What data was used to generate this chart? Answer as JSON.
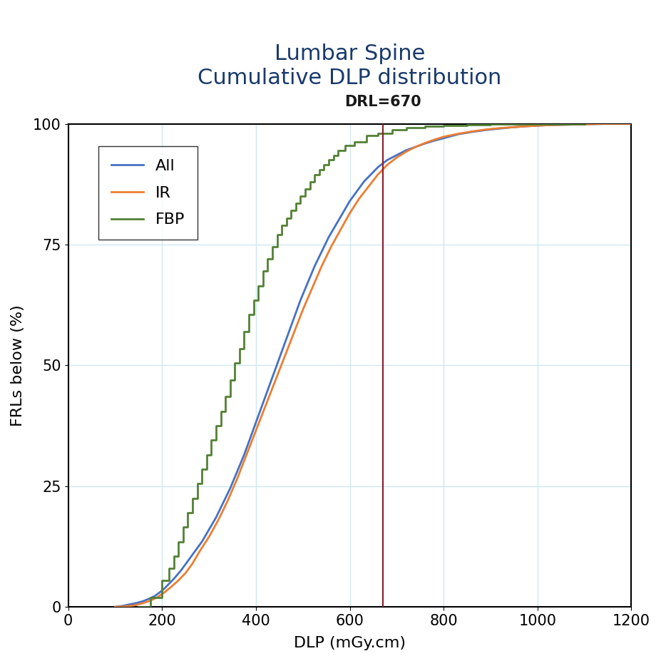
{
  "title_line1": "Lumbar Spine",
  "title_line2": "Cumulative DLP distribution",
  "title_color": "#1a3a6b",
  "xlabel": "DLP (mGy.cm)",
  "ylabel": "FRLs below (%)",
  "xlim": [
    0,
    1200
  ],
  "ylim": [
    0,
    100
  ],
  "xticks": [
    0,
    200,
    400,
    600,
    800,
    1000,
    1200
  ],
  "yticks": [
    0,
    25,
    50,
    75,
    100
  ],
  "drl_value": 670,
  "drl_color": "#8b1a2a",
  "drl_label": "DRL=670",
  "grid_color": "#d0e8f0",
  "background_color": "#ffffff",
  "axis_label_fontsize": 16,
  "tick_fontsize": 15,
  "title_fontsize": 22,
  "drl_fontsize": 15,
  "legend_fontsize": 16,
  "line_width": 2.0,
  "all_color": "#4472c4",
  "ir_color": "#ed7d31",
  "fbp_color": "#538135",
  "all_label": "All",
  "ir_label": "IR",
  "fbp_label": "FBP",
  "all_x": [
    100,
    115,
    130,
    145,
    160,
    175,
    185,
    195,
    205,
    215,
    225,
    240,
    255,
    270,
    285,
    300,
    315,
    330,
    345,
    360,
    375,
    390,
    405,
    420,
    435,
    450,
    465,
    480,
    495,
    510,
    525,
    540,
    555,
    570,
    585,
    600,
    615,
    630,
    645,
    660,
    680,
    700,
    720,
    740,
    760,
    780,
    800,
    830,
    860,
    890,
    920,
    950,
    980,
    1020,
    1060,
    1100,
    1150,
    1200
  ],
  "all_y": [
    0.0,
    0.2,
    0.5,
    0.8,
    1.2,
    1.8,
    2.3,
    3.0,
    3.8,
    4.8,
    5.8,
    7.5,
    9.5,
    11.5,
    13.5,
    16.0,
    18.5,
    21.5,
    24.5,
    28.0,
    31.5,
    35.5,
    39.5,
    43.5,
    47.5,
    51.5,
    55.5,
    59.5,
    63.5,
    67.0,
    70.5,
    73.5,
    76.5,
    79.0,
    81.5,
    84.0,
    86.0,
    88.0,
    89.5,
    91.0,
    92.5,
    93.5,
    94.5,
    95.2,
    95.9,
    96.5,
    97.0,
    97.8,
    98.3,
    98.7,
    99.0,
    99.3,
    99.5,
    99.7,
    99.8,
    99.9,
    100.0,
    100.0
  ],
  "ir_x": [
    100,
    120,
    140,
    160,
    175,
    190,
    205,
    220,
    235,
    250,
    265,
    280,
    300,
    320,
    340,
    360,
    380,
    400,
    420,
    440,
    460,
    480,
    500,
    520,
    540,
    560,
    580,
    600,
    620,
    640,
    660,
    680,
    700,
    720,
    740,
    760,
    780,
    800,
    830,
    860,
    890,
    920,
    950,
    980,
    1020,
    1060,
    1100,
    1150,
    1200
  ],
  "ir_y": [
    0.0,
    0.1,
    0.3,
    0.8,
    1.3,
    2.0,
    3.0,
    4.2,
    5.5,
    7.0,
    9.0,
    11.5,
    14.5,
    18.0,
    22.0,
    26.5,
    31.5,
    36.5,
    41.5,
    46.5,
    51.5,
    56.5,
    61.5,
    66.0,
    70.5,
    74.5,
    78.0,
    81.5,
    84.5,
    87.0,
    89.5,
    91.5,
    93.0,
    94.2,
    95.2,
    96.0,
    96.7,
    97.3,
    97.9,
    98.4,
    98.8,
    99.1,
    99.3,
    99.5,
    99.7,
    99.8,
    99.9,
    100.0,
    100.0
  ],
  "fbp_x": [
    150,
    175,
    200,
    215,
    225,
    235,
    245,
    255,
    265,
    275,
    285,
    295,
    305,
    315,
    325,
    335,
    345,
    355,
    365,
    375,
    385,
    395,
    405,
    415,
    425,
    435,
    445,
    455,
    465,
    475,
    485,
    495,
    505,
    515,
    525,
    535,
    545,
    555,
    565,
    575,
    590,
    610,
    635,
    660,
    690,
    720,
    760,
    800,
    850,
    900,
    960,
    1020,
    1060,
    1100
  ],
  "fbp_y": [
    0.0,
    2.0,
    5.5,
    8.0,
    10.5,
    13.5,
    16.5,
    19.5,
    22.5,
    25.5,
    28.5,
    31.5,
    34.5,
    37.5,
    40.5,
    43.5,
    47.0,
    50.5,
    53.5,
    57.0,
    60.5,
    63.5,
    66.5,
    69.5,
    72.0,
    74.5,
    77.0,
    79.0,
    80.5,
    82.0,
    83.5,
    85.0,
    86.5,
    88.0,
    89.5,
    90.5,
    91.5,
    92.5,
    93.5,
    94.5,
    95.5,
    96.2,
    97.5,
    98.0,
    98.7,
    99.2,
    99.5,
    99.7,
    99.8,
    99.9,
    99.9,
    100.0,
    100.0,
    100.0
  ]
}
